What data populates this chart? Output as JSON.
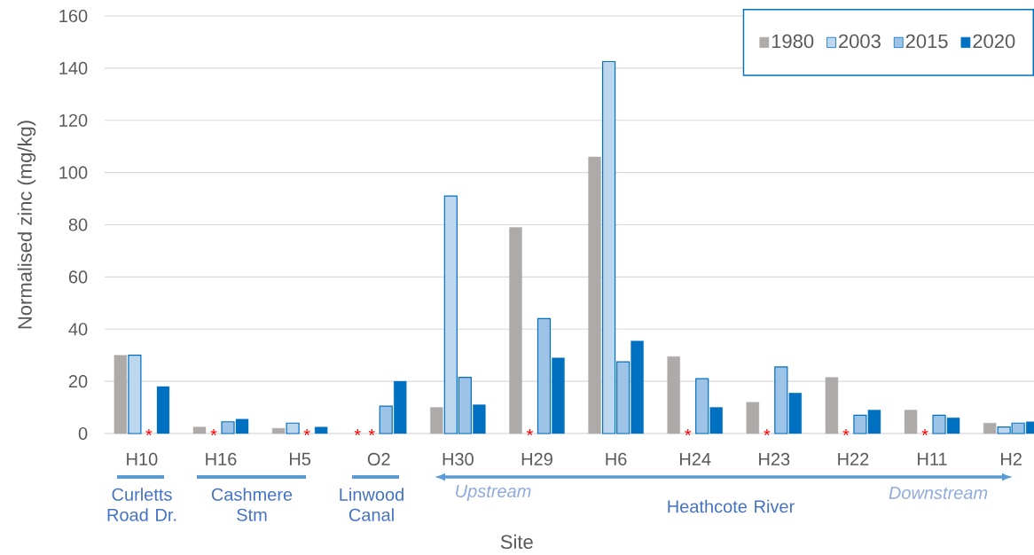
{
  "chart_data": {
    "type": "bar",
    "xlabel": "Site",
    "ylabel": "Normalised zinc (mg/kg)",
    "categories": [
      "H10",
      "H16",
      "H5",
      "O2",
      "H30",
      "H29",
      "H6",
      "H24",
      "H23",
      "H22",
      "H11",
      "H2"
    ],
    "series": [
      {
        "name": "1980",
        "color": "#aeaaaa",
        "values": [
          30,
          2.5,
          2,
          null,
          10,
          79,
          106,
          29.5,
          12,
          21.5,
          9,
          4
        ]
      },
      {
        "name": "2003",
        "color": "#bdd7ee",
        "values": [
          30,
          null,
          4,
          null,
          91,
          null,
          142.5,
          null,
          null,
          null,
          null,
          2.5
        ]
      },
      {
        "name": "2015",
        "color": "#9dc3e6",
        "values": [
          null,
          4.5,
          null,
          10.5,
          21.5,
          44,
          27.5,
          21,
          25.5,
          7,
          7,
          4
        ]
      },
      {
        "name": "2020",
        "color": "#0070c0",
        "values": [
          18,
          5.5,
          2.5,
          20,
          11,
          29,
          35.5,
          10,
          15.5,
          9,
          6,
          4.5
        ]
      }
    ],
    "ylim": [
      0,
      160
    ],
    "yticks": [
      0,
      20,
      40,
      60,
      80,
      100,
      120,
      140,
      160
    ],
    "grid": "y",
    "legend": "top right",
    "annotations": [
      "Curletts Road Dr.",
      "Cashmere Stm",
      "Linwood Canal",
      "Upstream",
      "Heathcote River",
      "Downstream",
      {
        "text": "*",
        "x": "H10",
        "y": 0
      },
      {
        "text": "*",
        "x": "H16",
        "y": 0
      },
      {
        "text": "*",
        "x": "H5",
        "y": 0
      },
      {
        "text": "*",
        "x": "O2",
        "y": 0
      },
      {
        "text": "*",
        "x": "O2",
        "y": 0
      },
      {
        "text": "*",
        "x": "H29",
        "y": 0
      },
      {
        "text": "*",
        "x": "H24",
        "y": 0
      },
      {
        "text": "*",
        "x": "H23",
        "y": 0
      },
      {
        "text": "*",
        "x": "H22",
        "y": 0
      },
      {
        "text": "*",
        "x": "H11",
        "y": 0
      }
    ]
  }
}
